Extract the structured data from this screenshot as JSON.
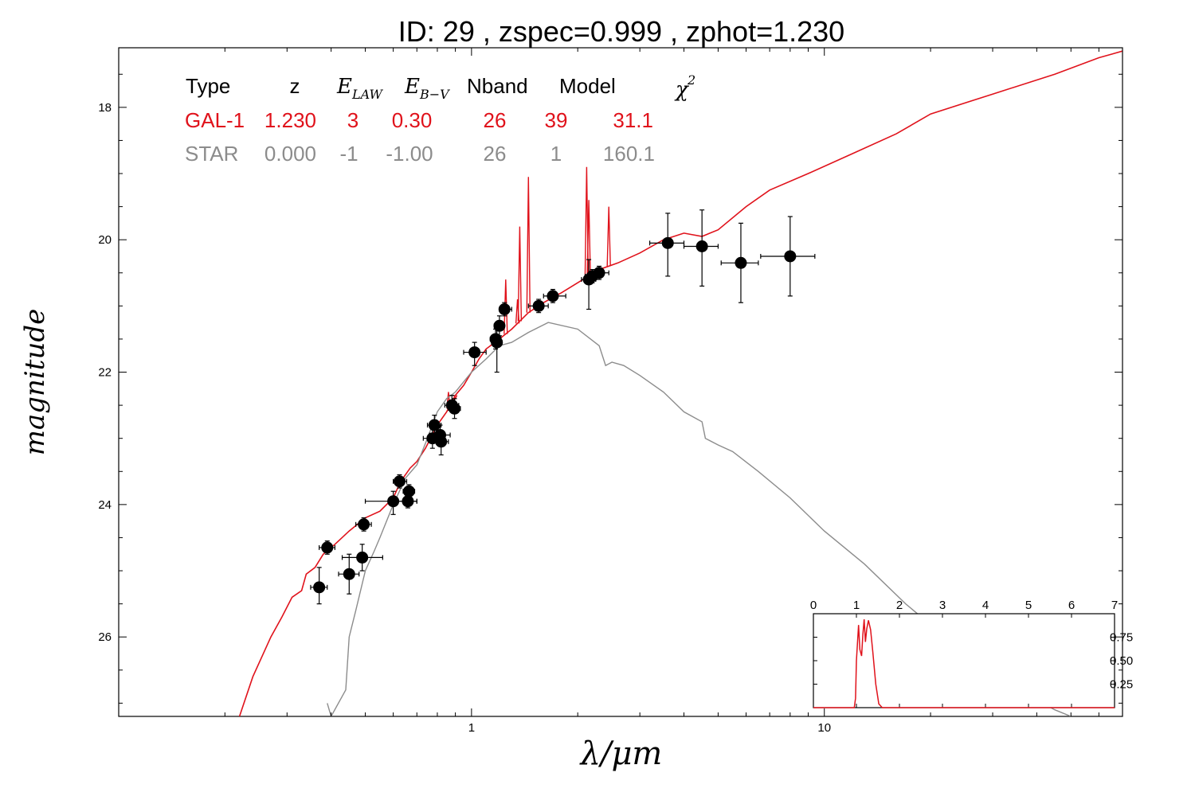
{
  "title": "ID:  29    , zspec=0.999 , zphot=1.230",
  "colors": {
    "galaxy": "#e0121b",
    "star": "#8c8c8c",
    "points": "#000000",
    "axis": "#000000"
  },
  "chart_data": [
    {
      "type": "scatter",
      "title": "",
      "xlabel": "λ/μm",
      "ylabel": "magnitude",
      "xscale": "log",
      "xlim": [
        0.1,
        70
      ],
      "ylim": [
        27.2,
        17.1
      ],
      "x_tick_labels": [
        {
          "value": 1,
          "label": "1"
        },
        {
          "value": 10,
          "label": "10"
        }
      ],
      "y_tick_labels": [
        {
          "value": 18,
          "label": "18"
        },
        {
          "value": 20,
          "label": "20"
        },
        {
          "value": 22,
          "label": "22"
        },
        {
          "value": 24,
          "label": "24"
        },
        {
          "value": 26,
          "label": "26"
        }
      ],
      "grid": false,
      "photometry": {
        "name": "observed",
        "points": [
          {
            "x": 0.37,
            "y": 25.25,
            "xlo": 0.35,
            "xhi": 0.39,
            "ylo": 24.95,
            "yhi": 25.5
          },
          {
            "x": 0.39,
            "y": 24.65,
            "xlo": 0.37,
            "xhi": 0.41,
            "ylo": 24.55,
            "yhi": 24.75
          },
          {
            "x": 0.45,
            "y": 25.05,
            "xlo": 0.42,
            "xhi": 0.48,
            "ylo": 24.75,
            "yhi": 25.35
          },
          {
            "x": 0.49,
            "y": 24.8,
            "xlo": 0.43,
            "xhi": 0.56,
            "ylo": 24.6,
            "yhi": 25.0
          },
          {
            "x": 0.495,
            "y": 24.3,
            "xlo": 0.47,
            "xhi": 0.52,
            "ylo": 24.2,
            "yhi": 24.4
          },
          {
            "x": 0.6,
            "y": 23.95,
            "xlo": 0.5,
            "xhi": 0.7,
            "ylo": 23.8,
            "yhi": 24.15
          },
          {
            "x": 0.625,
            "y": 23.65,
            "xlo": 0.6,
            "xhi": 0.655,
            "ylo": 23.55,
            "yhi": 23.75
          },
          {
            "x": 0.66,
            "y": 23.95,
            "xlo": 0.62,
            "xhi": 0.7,
            "ylo": 23.85,
            "yhi": 24.05
          },
          {
            "x": 0.665,
            "y": 23.8,
            "xlo": 0.64,
            "xhi": 0.69,
            "ylo": 23.7,
            "yhi": 23.9
          },
          {
            "x": 0.775,
            "y": 23.0,
            "xlo": 0.73,
            "xhi": 0.82,
            "ylo": 22.85,
            "yhi": 23.15
          },
          {
            "x": 0.785,
            "y": 22.8,
            "xlo": 0.75,
            "xhi": 0.82,
            "ylo": 22.65,
            "yhi": 22.95
          },
          {
            "x": 0.815,
            "y": 22.95,
            "xlo": 0.76,
            "xhi": 0.87,
            "ylo": 22.8,
            "yhi": 23.1
          },
          {
            "x": 0.82,
            "y": 23.05,
            "xlo": 0.78,
            "xhi": 0.86,
            "ylo": 22.9,
            "yhi": 23.25
          },
          {
            "x": 0.88,
            "y": 22.5,
            "xlo": 0.84,
            "xhi": 0.92,
            "ylo": 22.35,
            "yhi": 22.6
          },
          {
            "x": 0.895,
            "y": 22.55,
            "xlo": 0.86,
            "xhi": 0.93,
            "ylo": 22.4,
            "yhi": 22.7
          },
          {
            "x": 1.02,
            "y": 21.7,
            "xlo": 0.95,
            "xhi": 1.1,
            "ylo": 21.55,
            "yhi": 21.9
          },
          {
            "x": 1.17,
            "y": 21.5,
            "xlo": 1.13,
            "xhi": 1.21,
            "ylo": 21.35,
            "yhi": 21.65
          },
          {
            "x": 1.18,
            "y": 21.55,
            "xlo": 1.14,
            "xhi": 1.22,
            "ylo": 21.3,
            "yhi": 22.0
          },
          {
            "x": 1.2,
            "y": 21.3,
            "xlo": 1.16,
            "xhi": 1.24,
            "ylo": 21.15,
            "yhi": 21.45
          },
          {
            "x": 1.24,
            "y": 21.05,
            "xlo": 1.2,
            "xhi": 1.3,
            "ylo": 20.95,
            "yhi": 21.15
          },
          {
            "x": 1.55,
            "y": 21.0,
            "xlo": 1.45,
            "xhi": 1.65,
            "ylo": 20.9,
            "yhi": 21.1
          },
          {
            "x": 1.7,
            "y": 20.85,
            "xlo": 1.6,
            "xhi": 1.85,
            "ylo": 20.75,
            "yhi": 20.95
          },
          {
            "x": 2.15,
            "y": 20.6,
            "xlo": 2.05,
            "xhi": 2.25,
            "ylo": 20.3,
            "yhi": 21.05
          },
          {
            "x": 2.2,
            "y": 20.55,
            "xlo": 2.1,
            "xhi": 2.3,
            "ylo": 20.45,
            "yhi": 20.65
          },
          {
            "x": 2.3,
            "y": 20.5,
            "xlo": 2.15,
            "xhi": 2.45,
            "ylo": 20.4,
            "yhi": 20.6
          },
          {
            "x": 3.6,
            "y": 20.05,
            "xlo": 3.2,
            "xhi": 4.0,
            "ylo": 19.6,
            "yhi": 20.55
          },
          {
            "x": 4.5,
            "y": 20.1,
            "xlo": 4.0,
            "xhi": 5.0,
            "ylo": 19.55,
            "yhi": 20.7
          },
          {
            "x": 5.8,
            "y": 20.35,
            "xlo": 5.1,
            "xhi": 6.5,
            "ylo": 19.75,
            "yhi": 20.95
          },
          {
            "x": 8.0,
            "y": 20.25,
            "xlo": 6.6,
            "xhi": 9.4,
            "ylo": 19.65,
            "yhi": 20.85
          }
        ]
      },
      "series": [
        {
          "name": "GAL-1",
          "color": "#e0121b",
          "points": [
            [
              0.22,
              27.2
            ],
            [
              0.24,
              26.6
            ],
            [
              0.27,
              26.0
            ],
            [
              0.29,
              25.7
            ],
            [
              0.31,
              25.4
            ],
            [
              0.33,
              25.3
            ],
            [
              0.34,
              25.05
            ],
            [
              0.36,
              24.95
            ],
            [
              0.38,
              24.75
            ],
            [
              0.41,
              24.6
            ],
            [
              0.45,
              24.4
            ],
            [
              0.5,
              24.2
            ],
            [
              0.55,
              24.1
            ],
            [
              0.6,
              23.9
            ],
            [
              0.63,
              23.65
            ],
            [
              0.67,
              23.45
            ],
            [
              0.7,
              23.35
            ],
            [
              0.74,
              23.15
            ],
            [
              0.8,
              22.8
            ],
            [
              0.85,
              22.6
            ],
            [
              0.9,
              22.35
            ],
            [
              0.95,
              22.2
            ],
            [
              1.0,
              22.0
            ],
            [
              1.05,
              21.8
            ],
            [
              1.1,
              21.65
            ],
            [
              1.2,
              21.5
            ],
            [
              1.3,
              21.35
            ],
            [
              1.45,
              21.1
            ],
            [
              1.6,
              20.95
            ],
            [
              1.8,
              20.8
            ],
            [
              2.0,
              20.65
            ],
            [
              2.3,
              20.45
            ],
            [
              2.6,
              20.35
            ],
            [
              3.0,
              20.2
            ],
            [
              3.5,
              20.0
            ],
            [
              4.0,
              19.9
            ],
            [
              4.5,
              19.95
            ],
            [
              5.0,
              19.85
            ],
            [
              6.0,
              19.5
            ],
            [
              7.0,
              19.25
            ],
            [
              9.0,
              19.0
            ],
            [
              12.0,
              18.7
            ],
            [
              16.0,
              18.4
            ],
            [
              20.0,
              18.1
            ],
            [
              30.0,
              17.8
            ],
            [
              45.0,
              17.5
            ],
            [
              60.0,
              17.25
            ],
            [
              70.0,
              17.15
            ]
          ],
          "emission_lines": [
            [
              1.45,
              19.05
            ],
            [
              1.37,
              19.8
            ],
            [
              1.25,
              20.6
            ],
            [
              2.12,
              18.9
            ],
            [
              2.15,
              19.4
            ],
            [
              2.45,
              19.5
            ],
            [
              1.35,
              20.9
            ],
            [
              0.9,
              22.4
            ],
            [
              0.86,
              22.3
            ]
          ]
        },
        {
          "name": "STAR",
          "color": "#8c8c8c",
          "points": [
            [
              0.39,
              27.0
            ],
            [
              0.4,
              27.2
            ],
            [
              0.44,
              26.8
            ],
            [
              0.45,
              26.0
            ],
            [
              0.47,
              25.6
            ],
            [
              0.5,
              25.0
            ],
            [
              0.53,
              24.7
            ],
            [
              0.55,
              24.5
            ],
            [
              0.6,
              24.0
            ],
            [
              0.65,
              23.6
            ],
            [
              0.7,
              23.4
            ],
            [
              0.75,
              23.0
            ],
            [
              0.8,
              22.6
            ],
            [
              0.85,
              22.4
            ],
            [
              0.9,
              22.3
            ],
            [
              1.0,
              22.0
            ],
            [
              1.1,
              21.8
            ],
            [
              1.2,
              21.6
            ],
            [
              1.3,
              21.55
            ],
            [
              1.45,
              21.4
            ],
            [
              1.65,
              21.25
            ],
            [
              2.0,
              21.35
            ],
            [
              2.3,
              21.6
            ],
            [
              2.4,
              21.9
            ],
            [
              2.5,
              21.85
            ],
            [
              2.7,
              21.9
            ],
            [
              3.0,
              22.05
            ],
            [
              3.5,
              22.3
            ],
            [
              4.0,
              22.6
            ],
            [
              4.5,
              22.75
            ],
            [
              4.6,
              23.0
            ],
            [
              5.0,
              23.1
            ],
            [
              5.5,
              23.2
            ],
            [
              6.5,
              23.5
            ],
            [
              8.0,
              23.9
            ],
            [
              10.0,
              24.4
            ],
            [
              13.0,
              24.9
            ],
            [
              17.0,
              25.5
            ],
            [
              22.0,
              26.0
            ],
            [
              30.0,
              26.6
            ],
            [
              45.0,
              27.1
            ],
            [
              50.0,
              27.2
            ]
          ]
        }
      ],
      "legend_table": {
        "headers": {
          "type": "Type",
          "z": "z",
          "elaw": "E",
          "elaw_sub": "LAW",
          "ebv": "E",
          "ebv_sub": "B−V",
          "nband": "Nband",
          "model": "Model",
          "chi2": "χ",
          "chi2_sup": "2"
        },
        "rows": [
          {
            "type": "GAL-1",
            "z": "1.230",
            "elaw": "3",
            "ebv": "0.30",
            "nband": "26",
            "model": "39",
            "chi2": "31.1"
          },
          {
            "type": "STAR",
            "z": "0.000",
            "elaw": "-1",
            "ebv": "-1.00",
            "nband": "26",
            "model": "1",
            "chi2": "160.1"
          }
        ]
      }
    },
    {
      "type": "line",
      "title": "",
      "xlabel": "",
      "ylabel": "",
      "xlim": [
        0,
        7
      ],
      "ylim": [
        0,
        1.0
      ],
      "x_tick_labels": [
        "0",
        "1",
        "2",
        "3",
        "4",
        "5",
        "6",
        "7"
      ],
      "y_tick_labels": [
        "0.25",
        "0.50",
        "0.75"
      ],
      "series": [
        {
          "name": "",
          "points": [
            [
              0,
              0
            ],
            [
              0.95,
              0.0
            ],
            [
              0.98,
              0.1
            ],
            [
              1.0,
              0.5
            ],
            [
              1.05,
              0.88
            ],
            [
              1.08,
              0.62
            ],
            [
              1.12,
              0.55
            ],
            [
              1.15,
              0.78
            ],
            [
              1.18,
              0.94
            ],
            [
              1.21,
              0.7
            ],
            [
              1.24,
              0.84
            ],
            [
              1.28,
              0.93
            ],
            [
              1.33,
              0.83
            ],
            [
              1.38,
              0.6
            ],
            [
              1.45,
              0.25
            ],
            [
              1.52,
              0.04
            ],
            [
              1.6,
              0.0
            ],
            [
              7.0,
              0.0
            ]
          ]
        }
      ]
    }
  ]
}
